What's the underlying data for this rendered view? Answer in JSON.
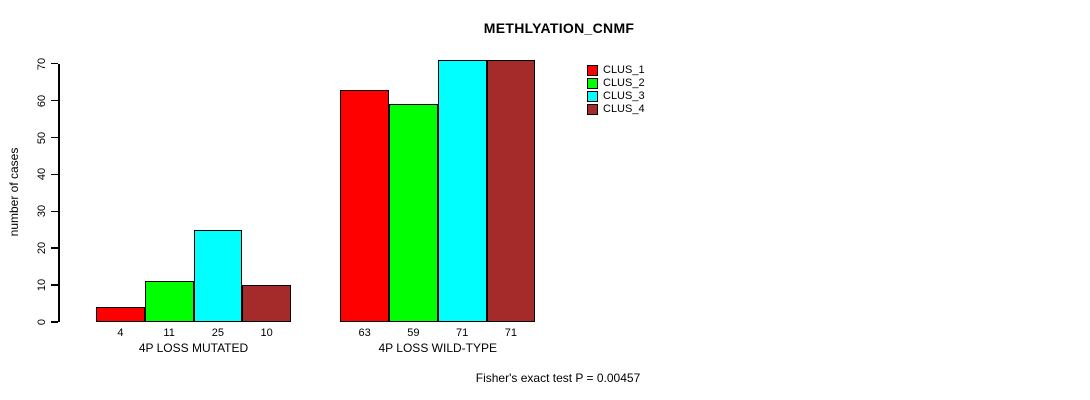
{
  "chart": {
    "title": "METHLYATION_CNMF",
    "ylabel": "number of cases",
    "footnote": "Fisher's exact test P = 0.00457"
  },
  "chart_data": {
    "type": "bar",
    "title": "METHLYATION_CNMF",
    "xlabel": "",
    "ylabel": "number of cases",
    "categories": [
      "4P LOSS MUTATED",
      "4P LOSS WILD-TYPE"
    ],
    "series": [
      {
        "name": "CLUS_1",
        "color": "#FF0000",
        "values": [
          4,
          63
        ]
      },
      {
        "name": "CLUS_2",
        "color": "#00FF00",
        "values": [
          11,
          59
        ]
      },
      {
        "name": "CLUS_3",
        "color": "#00FFFF",
        "values": [
          25,
          71
        ]
      },
      {
        "name": "CLUS_4",
        "color": "#A52A2A",
        "values": [
          10,
          71
        ]
      }
    ],
    "bar_value_labels": [
      [
        "4",
        "11",
        "25",
        "10"
      ],
      [
        "63",
        "59",
        "71",
        "71"
      ]
    ],
    "yticks": [
      0,
      10,
      20,
      30,
      40,
      50,
      60,
      70
    ],
    "ylim": [
      0,
      70
    ],
    "grid": false,
    "legend_position": "right",
    "annotation": "Fisher's exact test P = 0.00457",
    "axis_color": "#000000",
    "background_color": "#FFFFFF"
  }
}
